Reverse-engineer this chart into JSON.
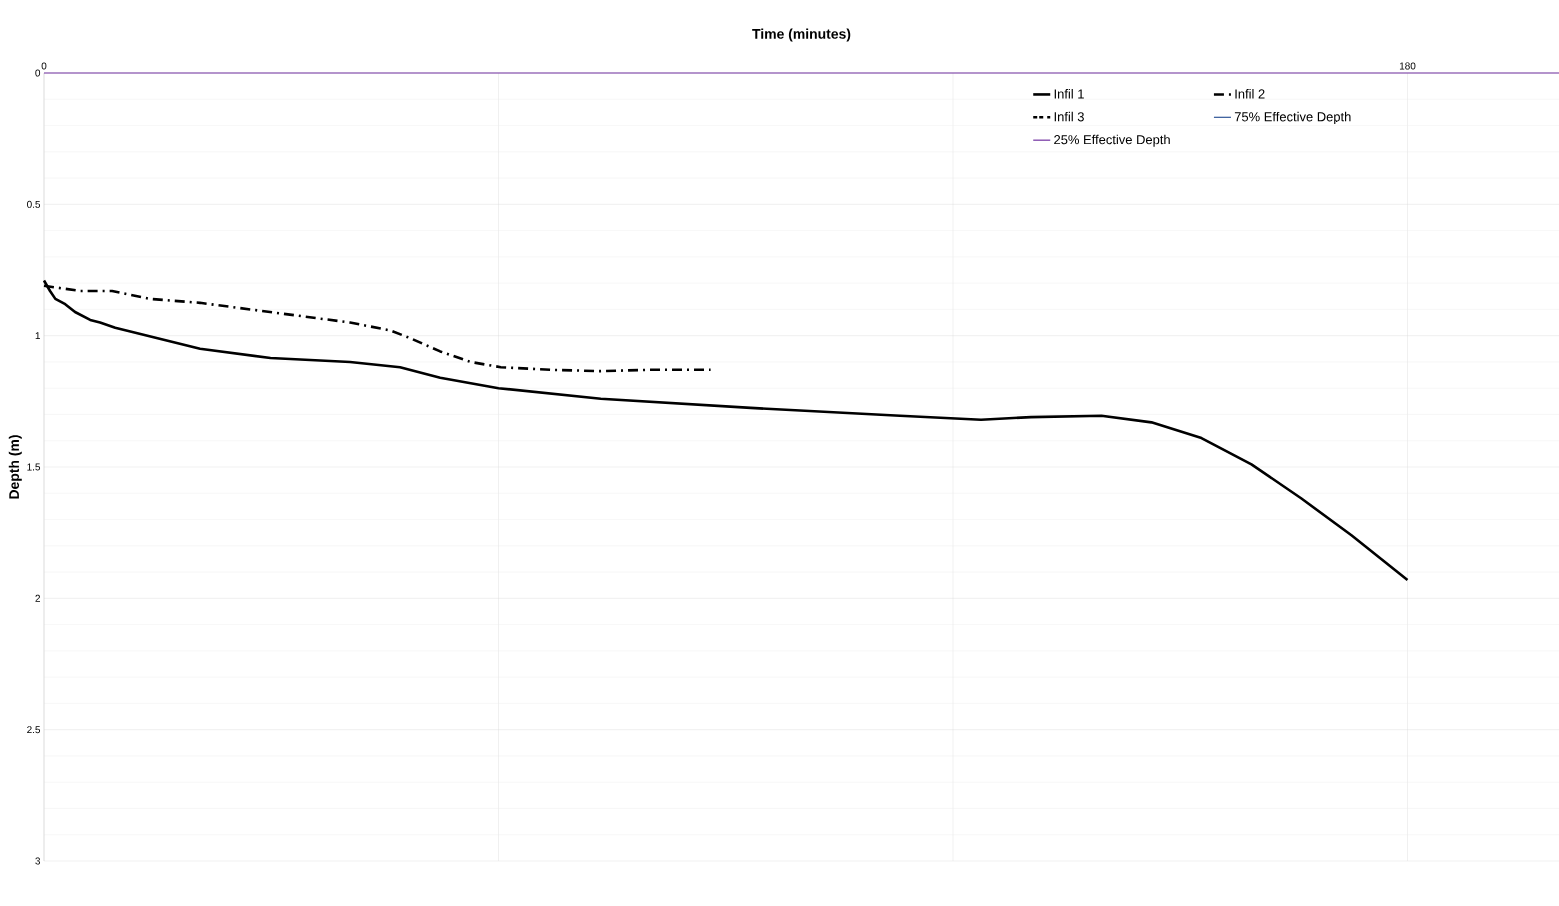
{
  "chart_data": {
    "type": "line",
    "xlabel": "Time (minutes)",
    "ylabel": "Depth (m)",
    "xlim": [
      0,
      200
    ],
    "ylim": [
      3,
      0
    ],
    "xticks": [
      0,
      {
        "value": 60,
        "label": null
      },
      {
        "value": 120,
        "label": null
      },
      180
    ],
    "yticks": [
      0,
      0.5,
      1,
      1.5,
      2,
      2.5,
      3
    ],
    "grid": true,
    "legend": "top right",
    "marker": "none",
    "series": [
      {
        "name": "Infil 1",
        "color": "#000000",
        "line_style": "solid",
        "x": [
          0,
          0.8,
          1.5,
          2.8,
          4.1,
          6.1,
          7.4,
          9.4,
          20.6,
          29.9,
          40.4,
          47,
          52.3,
          60,
          73.5,
          93.3,
          113,
          123.7,
          130.3,
          139.6,
          146.2,
          152.8,
          159.4,
          166,
          172.6,
          180
        ],
        "values": [
          0.79,
          0.83,
          0.86,
          0.88,
          0.91,
          0.94,
          0.95,
          0.97,
          1.05,
          1.085,
          1.1,
          1.12,
          1.16,
          1.2,
          1.24,
          1.275,
          1.305,
          1.32,
          1.31,
          1.305,
          1.33,
          1.39,
          1.49,
          1.62,
          1.76,
          1.93
        ]
      },
      {
        "name": "Infil 2",
        "color": "#000000",
        "line_style": "dashed",
        "x": [
          0,
          4.8,
          9,
          14,
          20.6,
          27.2,
          33.8,
          40.4,
          45.7,
          48.4,
          52.3,
          56.3,
          60.3,
          66.9,
          73.5,
          80,
          88
        ],
        "values": [
          0.81,
          0.83,
          0.83,
          0.86,
          0.875,
          0.9,
          0.925,
          0.95,
          0.98,
          1.01,
          1.06,
          1.1,
          1.12,
          1.13,
          1.135,
          1.13,
          1.13
        ]
      },
      {
        "name": "Infil 3",
        "color": "#000000",
        "line_style": "dotted",
        "values": [
          null
        ]
      },
      {
        "name": "75% Effective Depth",
        "color": "#2f5597",
        "line_style": "solid",
        "values": [
          null
        ]
      },
      {
        "name": "25% Effective Depth",
        "color": "#7030a0",
        "line_style": "solid",
        "x": [
          0,
          200
        ],
        "values": [
          0,
          0
        ]
      }
    ]
  }
}
